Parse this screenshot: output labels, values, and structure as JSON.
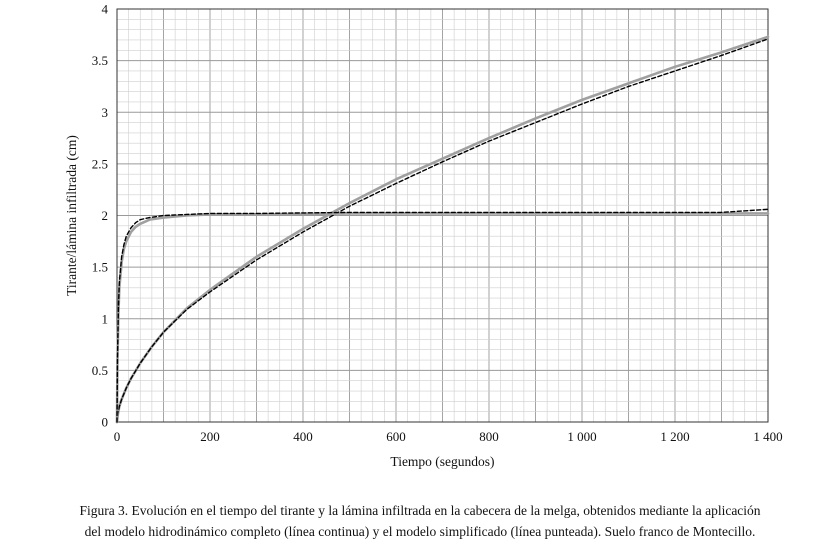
{
  "chart_data": {
    "type": "line",
    "xlabel": "Tiempo (segundos)",
    "ylabel": "Tirante/lámina infiltrada (cm)",
    "xlim": [
      0,
      1400
    ],
    "ylim": [
      0,
      4
    ],
    "x_ticks": [
      0,
      200,
      400,
      600,
      800,
      1000,
      1200,
      1400
    ],
    "x_tick_labels": [
      "0",
      "200",
      "400",
      "600",
      "800",
      "1 000",
      "1 200",
      "1 400"
    ],
    "y_ticks": [
      0,
      0.5,
      1,
      1.5,
      2,
      2.5,
      3,
      3.5,
      4
    ],
    "y_tick_labels": [
      "0",
      "0.5",
      "1",
      "1.5",
      "2",
      "2.5",
      "3",
      "3.5",
      "4"
    ],
    "grid": true,
    "series": [
      {
        "style": "solid",
        "color": "#a0a0a0",
        "x": [
          0,
          2,
          5,
          10,
          20,
          30,
          50,
          75,
          100,
          150,
          200,
          300,
          400,
          460,
          500,
          600,
          700,
          800,
          900,
          1000,
          1100,
          1200,
          1300,
          1400
        ],
        "y": [
          0,
          0.08,
          0.15,
          0.22,
          0.33,
          0.42,
          0.57,
          0.73,
          0.87,
          1.1,
          1.28,
          1.6,
          1.87,
          2.02,
          2.12,
          2.35,
          2.55,
          2.75,
          2.94,
          3.12,
          3.28,
          3.44,
          3.58,
          3.73
        ]
      },
      {
        "style": "dashed",
        "color": "#000000",
        "x": [
          0,
          2,
          5,
          10,
          20,
          30,
          50,
          75,
          100,
          150,
          200,
          300,
          400,
          460,
          500,
          600,
          700,
          800,
          900,
          1000,
          1100,
          1200,
          1300,
          1400
        ],
        "y": [
          0,
          0.08,
          0.15,
          0.22,
          0.33,
          0.42,
          0.57,
          0.73,
          0.87,
          1.09,
          1.26,
          1.57,
          1.84,
          1.99,
          2.09,
          2.31,
          2.52,
          2.72,
          2.9,
          3.08,
          3.25,
          3.4,
          3.55,
          3.71
        ]
      },
      {
        "style": "solid",
        "color": "#a0a0a0",
        "x": [
          0,
          1,
          3,
          5,
          10,
          15,
          20,
          30,
          40,
          50,
          70,
          100,
          150,
          200,
          300,
          500,
          800,
          1100,
          1400
        ],
        "y": [
          0,
          0.6,
          1.05,
          1.3,
          1.55,
          1.68,
          1.75,
          1.84,
          1.89,
          1.92,
          1.96,
          1.98,
          2.0,
          2.01,
          2.01,
          2.02,
          2.02,
          2.02,
          2.02
        ]
      },
      {
        "style": "dashed",
        "color": "#000000",
        "x": [
          0,
          1,
          3,
          5,
          10,
          15,
          20,
          30,
          40,
          50,
          70,
          100,
          150,
          200,
          300,
          500,
          800,
          1100,
          1300,
          1400
        ],
        "y": [
          0,
          0.62,
          1.1,
          1.35,
          1.6,
          1.72,
          1.8,
          1.88,
          1.93,
          1.96,
          1.98,
          2.0,
          2.01,
          2.02,
          2.02,
          2.03,
          2.03,
          2.03,
          2.03,
          2.06
        ]
      }
    ]
  },
  "caption": {
    "line1": "Figura 3. Evolución en el tiempo del tirante y la lámina infiltrada en la cabecera de la melga, obtenidos mediante la aplicación",
    "line2": "del modelo hidrodinámico completo (línea continua) y el modelo simplificado (línea punteada). Suelo franco de Montecillo."
  }
}
